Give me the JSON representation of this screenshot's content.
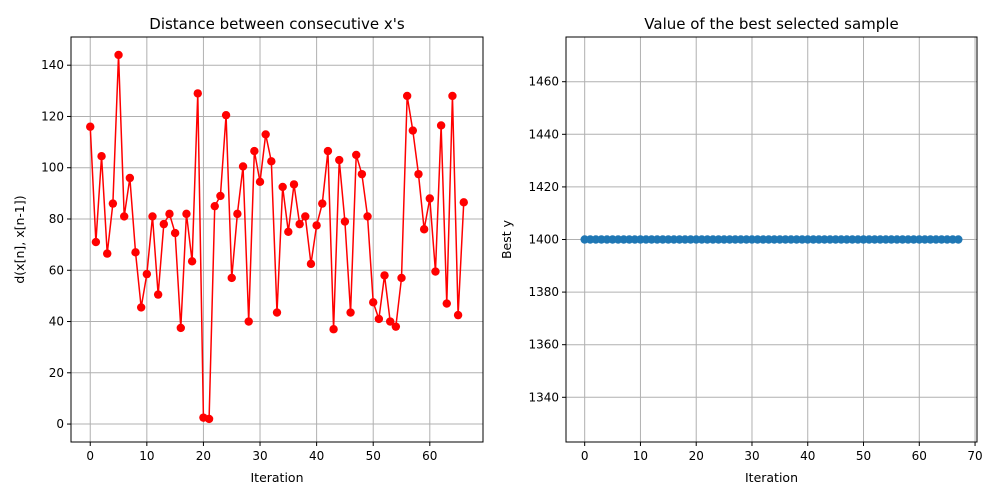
{
  "chart_data": [
    {
      "type": "line",
      "title": "Distance between consecutive x's",
      "xlabel": "Iteration",
      "ylabel": "d(x[n], x[n-1])",
      "xlim": [
        -3.4,
        69.4
      ],
      "ylim": [
        -7,
        151
      ],
      "xticks": [
        0,
        10,
        20,
        30,
        40,
        50,
        60
      ],
      "yticks": [
        0,
        20,
        40,
        60,
        80,
        100,
        120,
        140
      ],
      "grid": true,
      "series": [
        {
          "color": "#ff0000",
          "marker": "circle",
          "line": true,
          "x": [
            0,
            1,
            2,
            3,
            4,
            5,
            6,
            7,
            8,
            9,
            10,
            11,
            12,
            13,
            14,
            15,
            16,
            17,
            18,
            19,
            20,
            21,
            22,
            23,
            24,
            25,
            26,
            27,
            28,
            29,
            30,
            31,
            32,
            33,
            34,
            35,
            36,
            37,
            38,
            39,
            40,
            41,
            42,
            43,
            44,
            45,
            46,
            47,
            48,
            49,
            50,
            51,
            52,
            53,
            54,
            55,
            56,
            57,
            58,
            59,
            60,
            61,
            62,
            63,
            64,
            65,
            66
          ],
          "y": [
            116,
            71,
            104.5,
            66.5,
            86,
            144,
            81,
            96,
            67,
            45.5,
            58.5,
            81,
            50.5,
            78,
            82,
            74.5,
            37.5,
            82,
            63.5,
            129,
            2.5,
            2,
            85,
            89,
            120.5,
            57,
            82,
            100.5,
            40,
            106.5,
            94.5,
            113,
            102.5,
            43.5,
            92.5,
            75,
            93.5,
            78,
            81,
            62.5,
            77.5,
            86,
            106.5,
            37,
            103,
            79,
            43.5,
            105,
            97.5,
            81,
            47.5,
            41,
            58,
            40,
            38,
            57,
            128,
            114.5,
            97.5,
            76,
            88,
            59.5,
            116.5,
            47,
            128,
            42.5,
            86.5
          ]
        }
      ]
    },
    {
      "type": "scatter",
      "title": "Value of the best selected sample",
      "xlabel": "Iteration",
      "ylabel": "Best y",
      "xlim": [
        -3.35,
        70.35
      ],
      "ylim": [
        1323,
        1477
      ],
      "xticks": [
        0,
        10,
        20,
        30,
        40,
        50,
        60,
        70
      ],
      "yticks": [
        1340,
        1360,
        1380,
        1400,
        1420,
        1440,
        1460
      ],
      "grid": true,
      "series": [
        {
          "color": "#1f77b4",
          "marker": "circle",
          "line": true,
          "x": [
            0,
            1,
            2,
            3,
            4,
            5,
            6,
            7,
            8,
            9,
            10,
            11,
            12,
            13,
            14,
            15,
            16,
            17,
            18,
            19,
            20,
            21,
            22,
            23,
            24,
            25,
            26,
            27,
            28,
            29,
            30,
            31,
            32,
            33,
            34,
            35,
            36,
            37,
            38,
            39,
            40,
            41,
            42,
            43,
            44,
            45,
            46,
            47,
            48,
            49,
            50,
            51,
            52,
            53,
            54,
            55,
            56,
            57,
            58,
            59,
            60,
            61,
            62,
            63,
            64,
            65,
            66,
            67
          ],
          "y": [
            1400,
            1400,
            1400,
            1400,
            1400,
            1400,
            1400,
            1400,
            1400,
            1400,
            1400,
            1400,
            1400,
            1400,
            1400,
            1400,
            1400,
            1400,
            1400,
            1400,
            1400,
            1400,
            1400,
            1400,
            1400,
            1400,
            1400,
            1400,
            1400,
            1400,
            1400,
            1400,
            1400,
            1400,
            1400,
            1400,
            1400,
            1400,
            1400,
            1400,
            1400,
            1400,
            1400,
            1400,
            1400,
            1400,
            1400,
            1400,
            1400,
            1400,
            1400,
            1400,
            1400,
            1400,
            1400,
            1400,
            1400,
            1400,
            1400,
            1400,
            1400,
            1400,
            1400,
            1400,
            1400,
            1400,
            1400,
            1400
          ]
        }
      ]
    }
  ]
}
